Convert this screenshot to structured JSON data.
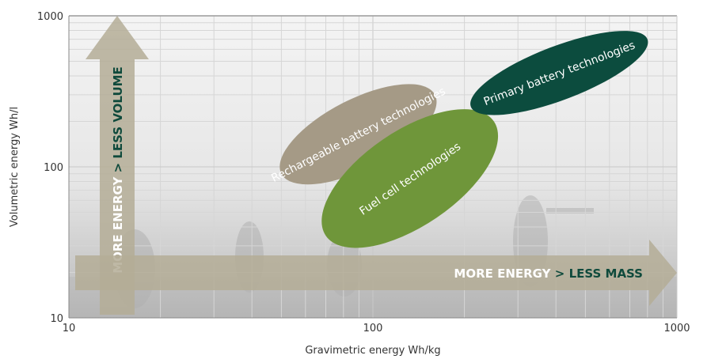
{
  "chart_data": {
    "type": "scatter",
    "title": "",
    "xlabel": "Gravimetric energy Wh/kg",
    "ylabel": "Volumetric energy Wh/l",
    "xscale": "log",
    "yscale": "log",
    "xlim": [
      10,
      1000
    ],
    "ylim": [
      10,
      1000
    ],
    "xticks": [
      "10",
      "100",
      "1000"
    ],
    "yticks": [
      "10",
      "100",
      "1000"
    ],
    "grid": true,
    "legend": "none",
    "regions": [
      {
        "name": "Rechargeable battery technologies",
        "color": "#a59a86",
        "x_range": [
          50,
          160
        ],
        "y_range": [
          90,
          300
        ]
      },
      {
        "name": "Fuel cell technologies",
        "color": "#6f963a",
        "x_range": [
          70,
          250
        ],
        "y_range": [
          35,
          200
        ]
      },
      {
        "name": "Primary battery technologies",
        "color": "#0c4c3e",
        "x_range": [
          210,
          800
        ],
        "y_range": [
          250,
          700
        ]
      }
    ],
    "annotations": {
      "vertical_arrow": {
        "part1": "MORE ENERGY",
        "separator": ">",
        "part2": "LESS VOLUME"
      },
      "horizontal_arrow": {
        "part1": "MORE ENERGY",
        "separator": ">",
        "part2": "LESS MASS"
      }
    },
    "colors": {
      "text_white": "#ffffff",
      "text_green": "#0f4a3c",
      "arrow": "#b4ad97"
    }
  }
}
